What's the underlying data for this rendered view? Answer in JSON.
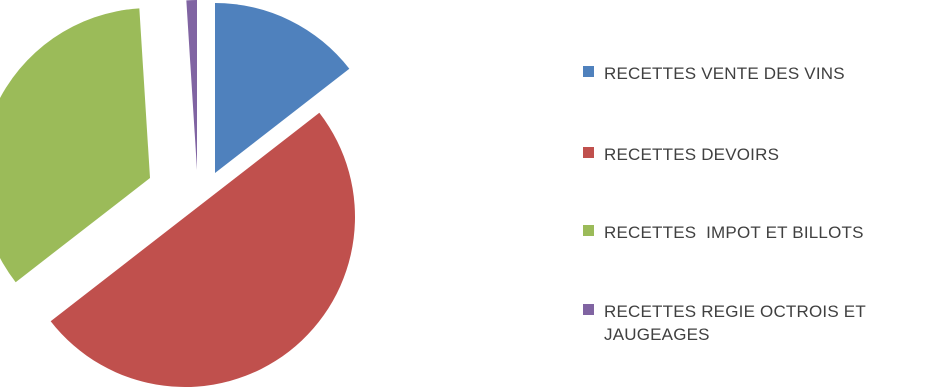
{
  "chart_data": {
    "type": "pie",
    "title": "",
    "exploded": true,
    "categories": [
      "RECETTES VENTE DES VINS",
      "RECETTES DEVOIRS",
      "RECETTES  IMPOT ET BILLOTS",
      "RECETTES REGIE OCTROIS ET JAUGEAGES"
    ],
    "values": [
      14.5,
      50.0,
      34.5,
      1.0
    ],
    "colors": [
      "#4F81BD",
      "#C0504D",
      "#9BBB59",
      "#8064A2"
    ],
    "legend_position": "right"
  }
}
